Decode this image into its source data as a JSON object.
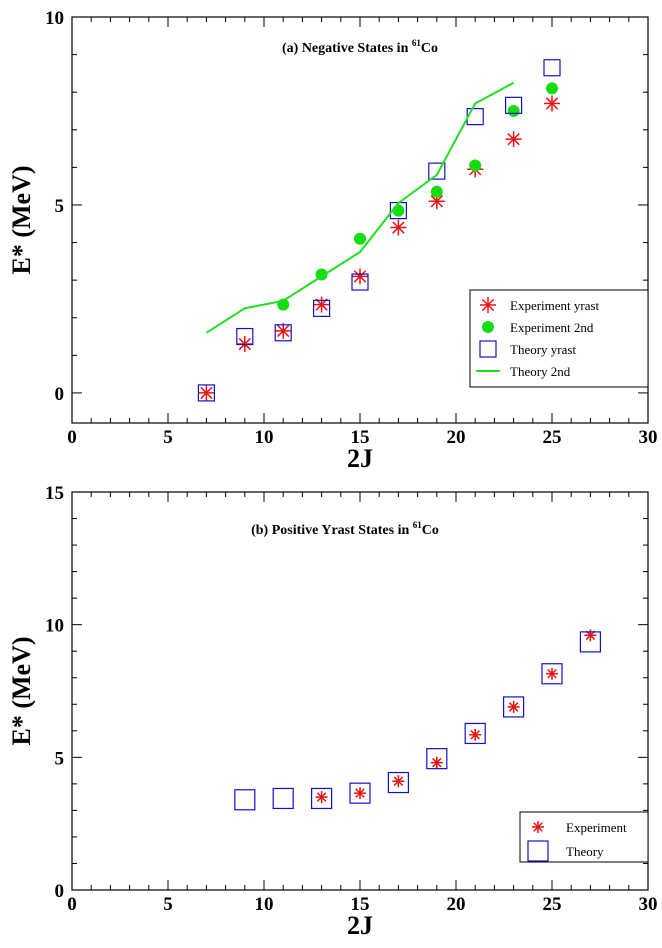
{
  "chart_data": [
    {
      "type": "scatter",
      "title": "(a) Negative States in ",
      "title_superscript": "61",
      "title_suffix": "Co",
      "xlabel": "2J",
      "ylabel": "E* (MeV)",
      "xlim": [
        0,
        30
      ],
      "ylim": [
        -0.8,
        10
      ],
      "xticks": [
        0,
        5,
        10,
        15,
        20,
        25,
        30
      ],
      "yticks": [
        0,
        5,
        10
      ],
      "grid": false,
      "legend_position": "bottom-right",
      "series": [
        {
          "name": "Experiment yrast",
          "marker": "asterisk",
          "color": "#ee1111",
          "points": [
            [
              7,
              0.0
            ],
            [
              9,
              1.3
            ],
            [
              11,
              1.65
            ],
            [
              13,
              2.35
            ],
            [
              15,
              3.1
            ],
            [
              17,
              4.4
            ],
            [
              19,
              5.1
            ],
            [
              21,
              5.95
            ],
            [
              23,
              6.75
            ],
            [
              25,
              7.7
            ]
          ]
        },
        {
          "name": "Experiment 2nd",
          "marker": "filled-circle",
          "color": "#11dd11",
          "points": [
            [
              11,
              2.35
            ],
            [
              13,
              3.15
            ],
            [
              15,
              4.1
            ],
            [
              17,
              4.85
            ],
            [
              19,
              5.35
            ],
            [
              21,
              6.05
            ],
            [
              23,
              7.5
            ],
            [
              25,
              8.1
            ]
          ]
        },
        {
          "name": "Theory yrast",
          "marker": "open-square",
          "color": "#1111cc",
          "points": [
            [
              7,
              0.0
            ],
            [
              9,
              1.5
            ],
            [
              11,
              1.6
            ],
            [
              13,
              2.25
            ],
            [
              15,
              2.95
            ],
            [
              17,
              4.85
            ],
            [
              19,
              5.9
            ],
            [
              21,
              7.35
            ],
            [
              23,
              7.65
            ],
            [
              25,
              8.65
            ]
          ]
        },
        {
          "name": "Theory 2nd",
          "marker": "line",
          "color": "#22dd22",
          "points": [
            [
              7,
              1.6
            ],
            [
              9,
              2.25
            ],
            [
              11,
              2.45
            ],
            [
              13,
              3.1
            ],
            [
              15,
              3.75
            ],
            [
              17,
              5.05
            ],
            [
              19,
              5.8
            ],
            [
              21,
              7.7
            ],
            [
              23,
              8.25
            ]
          ]
        }
      ]
    },
    {
      "type": "scatter",
      "title": "(b) Positive Yrast States in ",
      "title_superscript": "61",
      "title_suffix": "Co",
      "xlabel": "2J",
      "ylabel": "E* (MeV)",
      "xlim": [
        0,
        30
      ],
      "ylim": [
        0,
        15
      ],
      "xticks": [
        0,
        5,
        10,
        15,
        20,
        25,
        30
      ],
      "yticks": [
        0,
        5,
        10,
        15
      ],
      "grid": false,
      "legend_position": "bottom-right",
      "series": [
        {
          "name": "Experiment",
          "marker": "asterisk",
          "color": "#ee1111",
          "points": [
            [
              13,
              3.5
            ],
            [
              15,
              3.65
            ],
            [
              17,
              4.1
            ],
            [
              19,
              4.8
            ],
            [
              21,
              5.85
            ],
            [
              23,
              6.9
            ],
            [
              25,
              8.15
            ],
            [
              27,
              9.6
            ]
          ]
        },
        {
          "name": "Theory",
          "marker": "open-square",
          "color": "#1111cc",
          "points": [
            [
              9,
              3.4
            ],
            [
              11,
              3.45
            ],
            [
              13,
              3.45
            ],
            [
              15,
              3.65
            ],
            [
              17,
              4.05
            ],
            [
              19,
              4.95
            ],
            [
              21,
              5.9
            ],
            [
              23,
              6.9
            ],
            [
              25,
              8.15
            ],
            [
              27,
              9.35
            ]
          ]
        }
      ]
    }
  ]
}
